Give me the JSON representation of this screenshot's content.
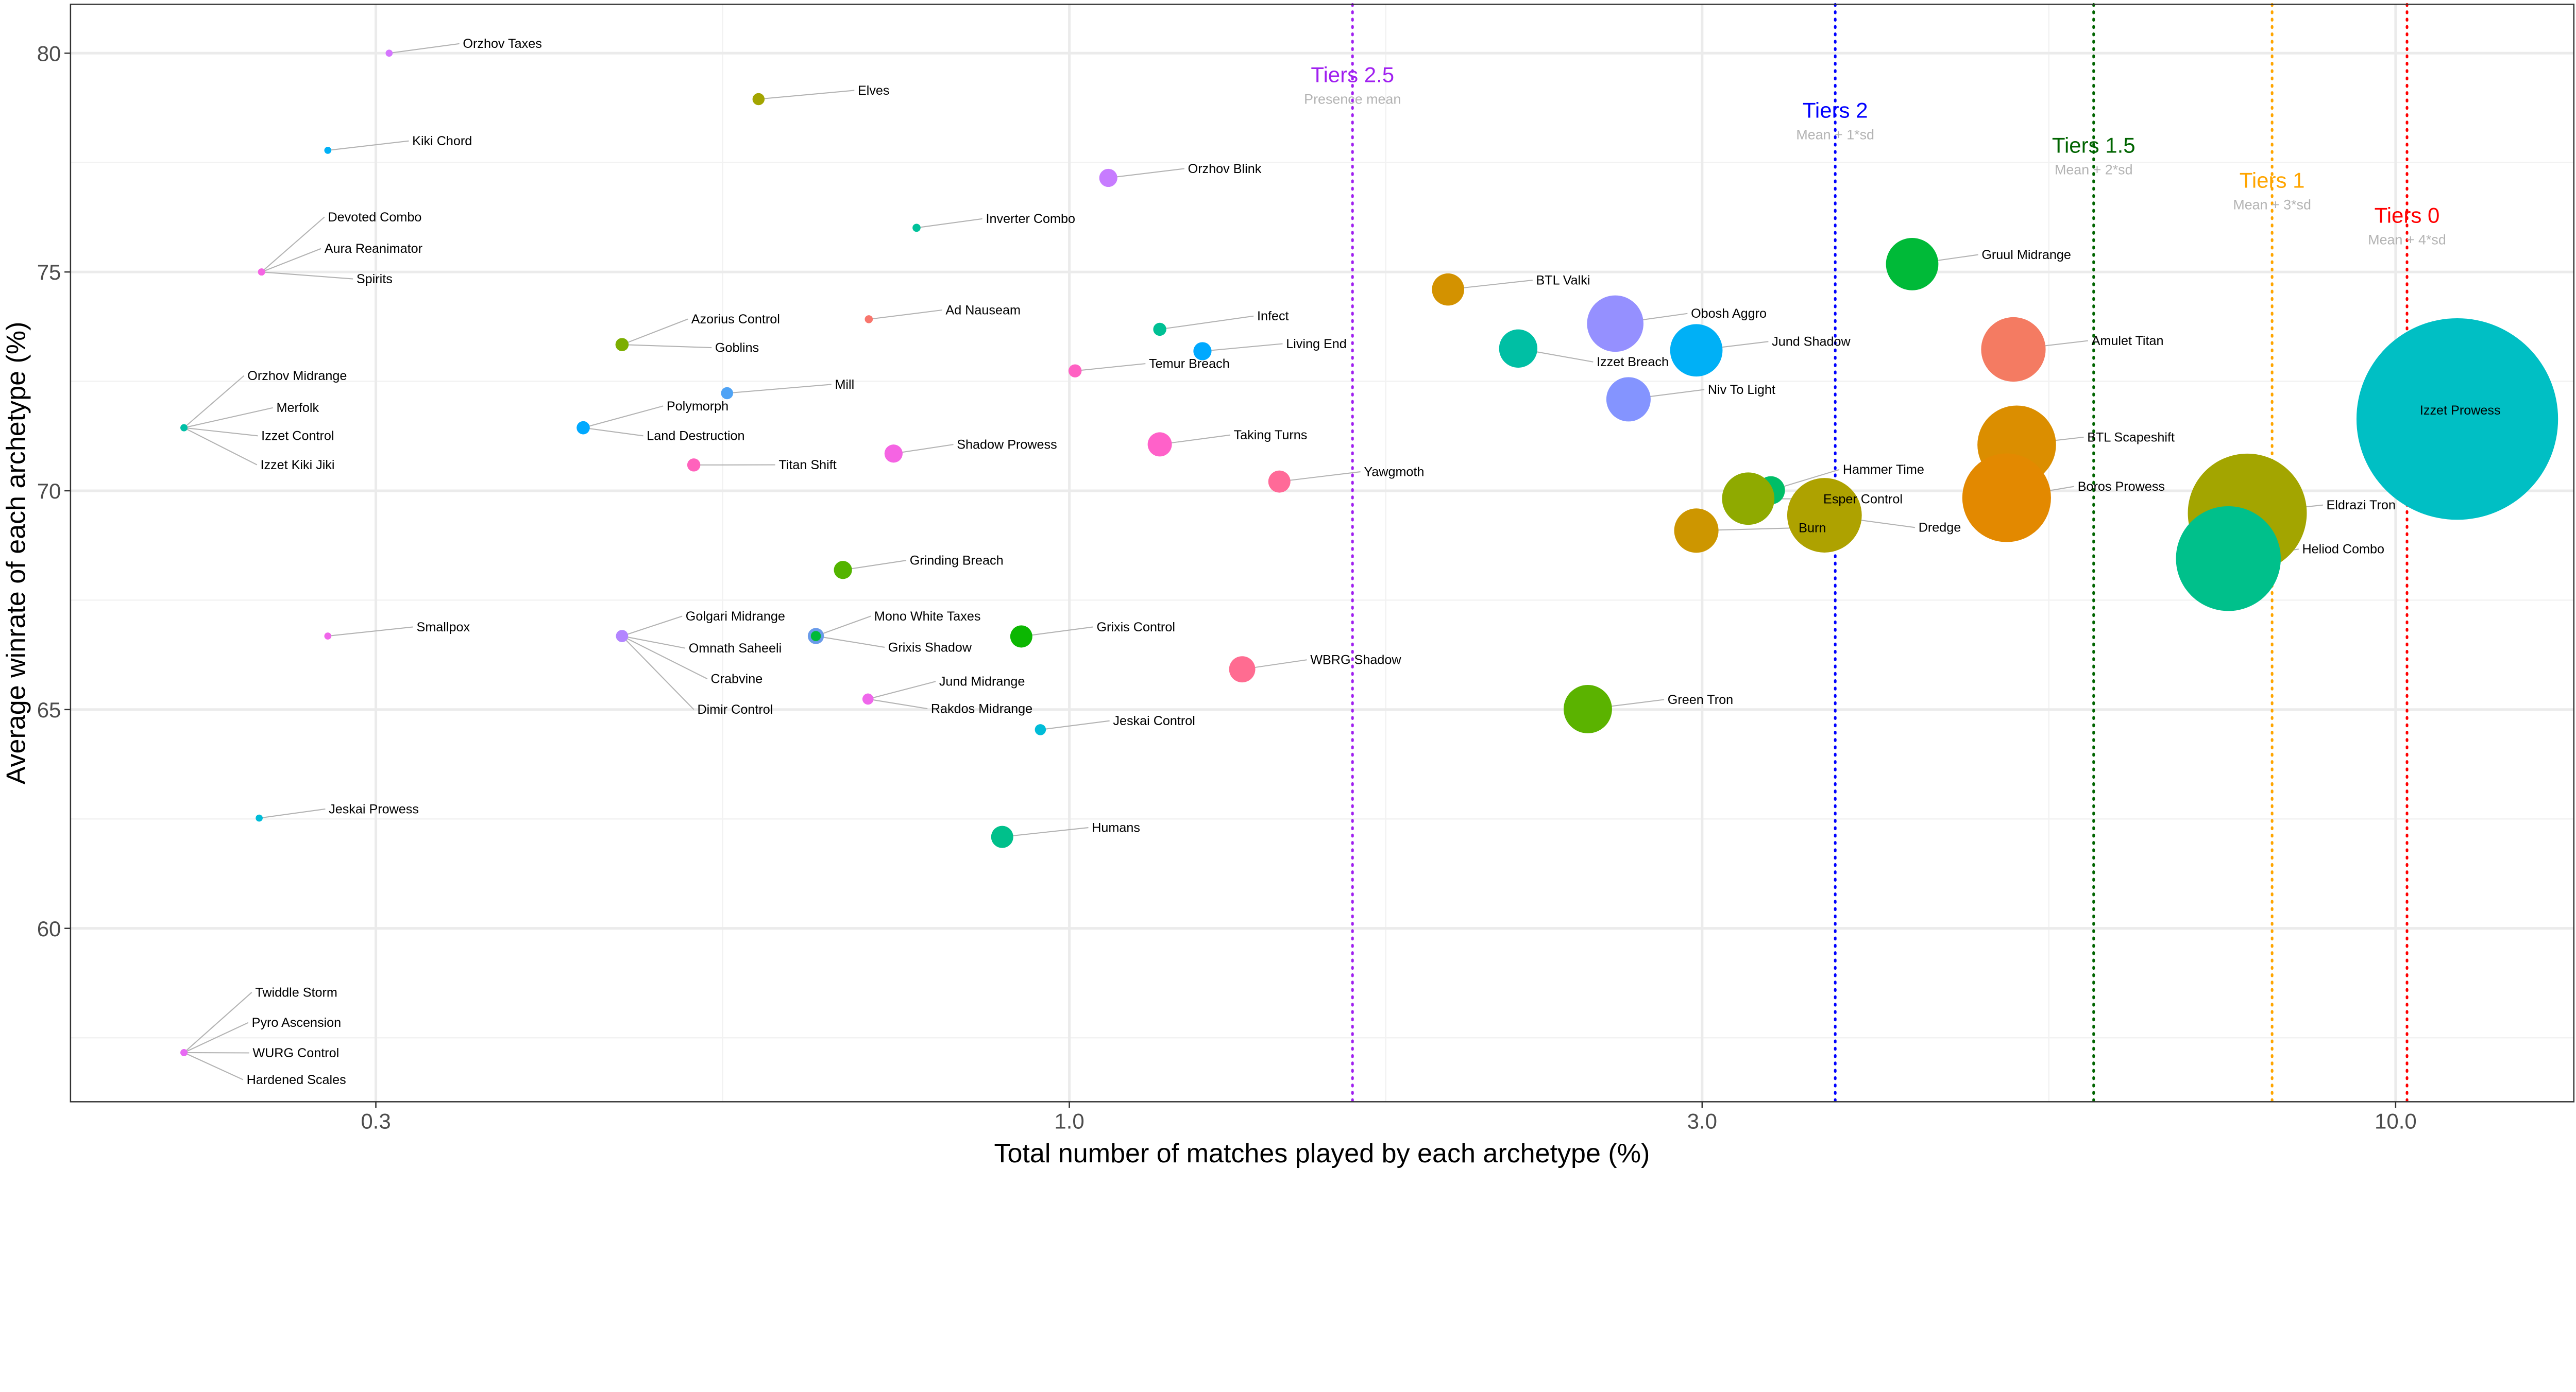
{
  "chart_data": {
    "type": "scatter",
    "title": "",
    "xlabel": "Total number of matches played by each archetype (%)",
    "ylabel": "Average winrate of each archetype (%)",
    "x_scale": "log10",
    "xlim": [
      0.177,
      13.6
    ],
    "ylim": [
      56.0,
      81.1
    ],
    "x_ticks": [
      {
        "value": 0.3,
        "label": "0.3"
      },
      {
        "value": 1.0,
        "label": "1.0"
      },
      {
        "value": 3.0,
        "label": "3.0"
      },
      {
        "value": 10.0,
        "label": "10.0"
      }
    ],
    "y_ticks": [
      {
        "value": 60,
        "label": "60"
      },
      {
        "value": 65,
        "label": "65"
      },
      {
        "value": 70,
        "label": "70"
      },
      {
        "value": 75,
        "label": "75"
      },
      {
        "value": 80,
        "label": "80"
      }
    ],
    "grid": true,
    "legend": "none",
    "size_note_relative": true,
    "tiers": [
      {
        "label": "Tiers 2.5",
        "sub": "Presence mean",
        "x": 1.635,
        "color": "#A020F0"
      },
      {
        "label": "Tiers 2",
        "sub": "Mean + 1*sd",
        "x": 3.78,
        "color": "#0000FF"
      },
      {
        "label": "Tiers 1.5",
        "sub": "Mean + 2*sd",
        "x": 5.92,
        "color": "#006400"
      },
      {
        "label": "Tiers 1",
        "sub": "Mean + 3*sd",
        "x": 8.07,
        "color": "#FFA500"
      },
      {
        "label": "Tiers 0",
        "sub": "Mean + 4*sd",
        "x": 10.2,
        "color": "#FF0000"
      }
    ],
    "points": [
      {
        "name": "Izzet Prowess",
        "x": 11.13,
        "y": 71.64,
        "size": 1.0,
        "color": "#00BFC4"
      },
      {
        "name": "Eldrazi Tron",
        "x": 7.73,
        "y": 69.49,
        "size": 0.59,
        "color": "#A3A500"
      },
      {
        "name": "Heliod Combo",
        "x": 7.48,
        "y": 68.45,
        "size": 0.52,
        "color": "#00C08B"
      },
      {
        "name": "BTL Scapeshift",
        "x": 5.18,
        "y": 71.05,
        "size": 0.39,
        "color": "#DB8E00"
      },
      {
        "name": "Boros Prowess",
        "x": 5.09,
        "y": 69.84,
        "size": 0.44,
        "color": "#E38900"
      },
      {
        "name": "Dredge",
        "x": 3.71,
        "y": 69.44,
        "size": 0.37,
        "color": "#AEA200"
      },
      {
        "name": "Amulet Titan",
        "x": 5.15,
        "y": 73.23,
        "size": 0.32,
        "color": "#F47B62"
      },
      {
        "name": "Obosh Aggro",
        "x": 2.58,
        "y": 73.82,
        "size": 0.28,
        "color": "#9590FF"
      },
      {
        "name": "Gruul Midrange",
        "x": 4.32,
        "y": 75.18,
        "size": 0.26,
        "color": "#00BA38"
      },
      {
        "name": "Hammer Time",
        "x": 3.38,
        "y": 70.01,
        "size": 0.14,
        "color": "#00BE67"
      },
      {
        "name": "Esper Control",
        "x": 3.25,
        "y": 69.82,
        "size": 0.26,
        "color": "#8FAA00"
      },
      {
        "name": "Jund Shadow",
        "x": 2.97,
        "y": 73.21,
        "size": 0.26,
        "color": "#00B0F6"
      },
      {
        "name": "Green Tron",
        "x": 2.46,
        "y": 65.01,
        "size": 0.24,
        "color": "#5BB300"
      },
      {
        "name": "Niv To Light",
        "x": 2.64,
        "y": 72.09,
        "size": 0.22,
        "color": "#8494FF"
      },
      {
        "name": "Burn",
        "x": 2.97,
        "y": 69.09,
        "size": 0.22,
        "color": "#CD9600"
      },
      {
        "name": "Izzet Breach",
        "x": 2.18,
        "y": 73.25,
        "size": 0.19,
        "color": "#00BFA4"
      },
      {
        "name": "BTL Valki",
        "x": 1.93,
        "y": 74.6,
        "size": 0.16,
        "color": "#D39200"
      },
      {
        "name": "WBRG Shadow",
        "x": 1.35,
        "y": 65.92,
        "size": 0.13,
        "color": "#FF6C91"
      },
      {
        "name": "Taking Turns",
        "x": 1.17,
        "y": 71.06,
        "size": 0.12,
        "color": "#FF61C9"
      },
      {
        "name": "Yawgmoth",
        "x": 1.44,
        "y": 70.21,
        "size": 0.11,
        "color": "#FF6A98"
      },
      {
        "name": "Humans",
        "x": 0.89,
        "y": 62.09,
        "size": 0.11,
        "color": "#00C08B"
      },
      {
        "name": "Grixis Control",
        "x": 0.92,
        "y": 66.67,
        "size": 0.11,
        "color": "#0CB702"
      },
      {
        "name": "Orzhov Blink",
        "x": 1.07,
        "y": 77.15,
        "size": 0.09,
        "color": "#C77CFF"
      },
      {
        "name": "Living End",
        "x": 1.26,
        "y": 73.19,
        "size": 0.09,
        "color": "#00A9FF"
      },
      {
        "name": "Shadow Prowess",
        "x": 0.737,
        "y": 70.85,
        "size": 0.09,
        "color": "#F564E3"
      },
      {
        "name": "Grinding Breach",
        "x": 0.675,
        "y": 68.19,
        "size": 0.09,
        "color": "#53B400"
      },
      {
        "name": "Mono White Taxes",
        "x": 0.644,
        "y": 66.68,
        "size": 0.08,
        "color": "#6A9BEA"
      },
      {
        "name": "Grixis Shadow",
        "x": 0.644,
        "y": 66.68,
        "size": 0.05,
        "color": "#00BA38"
      },
      {
        "name": "Infect",
        "x": 1.17,
        "y": 73.69,
        "size": 0.065,
        "color": "#00C094"
      },
      {
        "name": "Temur Breach",
        "x": 1.01,
        "y": 72.74,
        "size": 0.065,
        "color": "#FF61C3"
      },
      {
        "name": "Azorius Control",
        "x": 0.46,
        "y": 73.34,
        "size": 0.065,
        "color": "#7CAE00"
      },
      {
        "name": "Goblins",
        "x": 0.46,
        "y": 73.34,
        "size": 0.065,
        "color": "#7CAE00"
      },
      {
        "name": "Polymorph",
        "x": 0.43,
        "y": 71.44,
        "size": 0.065,
        "color": "#00A9FF"
      },
      {
        "name": "Land Destruction",
        "x": 0.43,
        "y": 71.44,
        "size": 0.065,
        "color": "#00A9FF"
      },
      {
        "name": "Titan Shift",
        "x": 0.521,
        "y": 70.59,
        "size": 0.065,
        "color": "#FF62BC"
      },
      {
        "name": "Elves",
        "x": 0.583,
        "y": 78.95,
        "size": 0.06,
        "color": "#A3A500"
      },
      {
        "name": "Mill",
        "x": 0.552,
        "y": 72.23,
        "size": 0.06,
        "color": "#4FA3F5"
      },
      {
        "name": "Golgari Midrange",
        "x": 0.46,
        "y": 66.68,
        "size": 0.06,
        "color": "#B385FF"
      },
      {
        "name": "Omnath Saheeli",
        "x": 0.46,
        "y": 66.68,
        "size": 0.06,
        "color": "#B385FF"
      },
      {
        "name": "Crabvine",
        "x": 0.46,
        "y": 66.68,
        "size": 0.06,
        "color": "#B385FF"
      },
      {
        "name": "Dimir Control",
        "x": 0.46,
        "y": 66.68,
        "size": 0.06,
        "color": "#B385FF"
      },
      {
        "name": "Jund Midrange",
        "x": 0.705,
        "y": 65.24,
        "size": 0.055,
        "color": "#EF67EB"
      },
      {
        "name": "Rakdos Midrange",
        "x": 0.705,
        "y": 65.24,
        "size": 0.055,
        "color": "#EF67EB"
      },
      {
        "name": "Jeskai Control",
        "x": 0.951,
        "y": 64.54,
        "size": 0.055,
        "color": "#00BCD8"
      },
      {
        "name": "Inverter Combo",
        "x": 0.767,
        "y": 76.01,
        "size": 0.04,
        "color": "#00C19A"
      },
      {
        "name": "Ad Nauseam",
        "x": 0.706,
        "y": 73.92,
        "size": 0.04,
        "color": "#F8766D"
      },
      {
        "name": "Orzhov Taxes",
        "x": 0.307,
        "y": 80.0,
        "size": 0.035,
        "color": "#D575FE"
      },
      {
        "name": "Kiki Chord",
        "x": 0.276,
        "y": 77.78,
        "size": 0.035,
        "color": "#00B0F6"
      },
      {
        "name": "Devoted Combo",
        "x": 0.246,
        "y": 75.0,
        "size": 0.035,
        "color": "#F564E3"
      },
      {
        "name": "Aura Reanimator",
        "x": 0.246,
        "y": 75.0,
        "size": 0.035,
        "color": "#F564E3"
      },
      {
        "name": "Spirits",
        "x": 0.246,
        "y": 75.0,
        "size": 0.035,
        "color": "#F564E3"
      },
      {
        "name": "Orzhov Midrange",
        "x": 0.215,
        "y": 71.44,
        "size": 0.035,
        "color": "#00BFA6"
      },
      {
        "name": "Merfolk",
        "x": 0.215,
        "y": 71.44,
        "size": 0.035,
        "color": "#00BFA6"
      },
      {
        "name": "Izzet Control",
        "x": 0.215,
        "y": 71.44,
        "size": 0.035,
        "color": "#00BFA6"
      },
      {
        "name": "Izzet Kiki Jiki",
        "x": 0.215,
        "y": 71.44,
        "size": 0.035,
        "color": "#00BFA6"
      },
      {
        "name": "Smallpox",
        "x": 0.276,
        "y": 66.68,
        "size": 0.035,
        "color": "#F066EA"
      },
      {
        "name": "Jeskai Prowess",
        "x": 0.245,
        "y": 62.52,
        "size": 0.035,
        "color": "#00BCD8"
      },
      {
        "name": "Twiddle Storm",
        "x": 0.215,
        "y": 57.16,
        "size": 0.035,
        "color": "#E76BF3"
      },
      {
        "name": "Pyro Ascension",
        "x": 0.215,
        "y": 57.16,
        "size": 0.035,
        "color": "#E76BF3"
      },
      {
        "name": "WURG Control",
        "x": 0.215,
        "y": 57.16,
        "size": 0.035,
        "color": "#E76BF3"
      },
      {
        "name": "Hardened Scales",
        "x": 0.215,
        "y": 57.16,
        "size": 0.035,
        "color": "#E76BF3"
      }
    ]
  }
}
